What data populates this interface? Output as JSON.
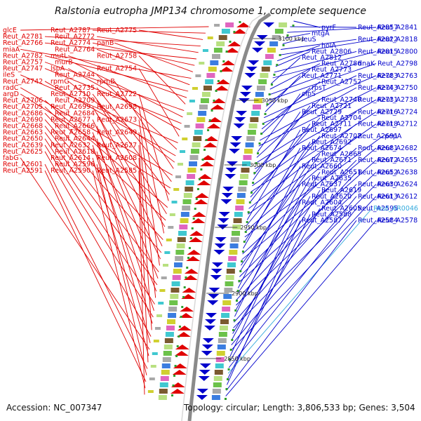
{
  "title": "Ralstonia eutropha JMP134 chromosome 1, complete sequence",
  "accession_text": "Accession: NC_007347",
  "topology_text": "Topology: circular; Length: 3,806,533 bp; Genes: 3,504",
  "colors": {
    "left_genes": "#e00000",
    "right_genes": "#0000cc",
    "rna_gene": "#33aadd",
    "backbone": "#8a8a8a",
    "tick": "#2e9e2e"
  },
  "position_markers": [
    "3100 kbp",
    "3050 kbp",
    "3000 kbp",
    "2950 kbp",
    "2900 kbp",
    "2850 kbp"
  ],
  "left_labels": [
    "glcE",
    "Reut_A2787",
    "Reut_A2775",
    "Reut_A2781",
    "Reut_A2772",
    "Reut_A2766",
    "Reut_A2774",
    "panB",
    "miaA",
    "Reut_A2764",
    "Reut_A2782",
    "mutL",
    "Reut_A2758",
    "Reut_A2757",
    "murB",
    "Reut_A2747",
    "lspA",
    "Reut_A2754",
    "ileS",
    "Reut_A2744",
    "Reut_A2742",
    "rpmG",
    "rpmB",
    "radC",
    "Reut_A2735",
    "argD",
    "Reut_A2710",
    "Reut_A2722",
    "Reut_A2706",
    "Reut_A2709",
    "Reut_A2705",
    "Reut_A2699",
    "Reut_A2698",
    "Reut_A2686",
    "Reut_A2684",
    "Reut_A2690",
    "Reut_A2677",
    "Reut_A2673",
    "Reut_A2668",
    "Reut_A2666",
    "Reut_A2663",
    "Reut_A2658",
    "Reut_A2649",
    "Reut_A2650",
    "Reut_A2644",
    "Reut_A2639",
    "Reut_A2632",
    "Reut_A2627",
    "Reut_A2625",
    "Reut_A2618",
    "fabG",
    "Reut_A2614",
    "Reut_A2608",
    "Reut_A2601",
    "Reut_A2596",
    "Reut_A2591",
    "Reut_A2590",
    "Reut_A2585"
  ],
  "right_labels": [
    "pyrF",
    "Reut_A2857",
    "Reut_A2841",
    "mtgA",
    "leuS",
    "Reut_A2822",
    "Reut_A2818",
    "holA",
    "Reut_A2806",
    "Reut_A2815",
    "Reut_A2800",
    "Reut_A2812",
    "Reut_A2786",
    "dnaK",
    "Reut_A2798",
    "Reut_A2773",
    "Reut_A2771",
    "Reut_A2783",
    "Reut_A2763",
    "Reut_A2752",
    "rpsT",
    "Reut_A2743",
    "Reut_A2750",
    "clpS",
    "Reut_A2740",
    "Reut_A2731",
    "Reut_A2738",
    "Reut_A2721",
    "Reut_A2729",
    "Reut_A2716",
    "Reut_A2724",
    "Reut_A2704",
    "Reut_A2711",
    "Reut_A2718",
    "Reut_A2712",
    "Reut_A2697",
    "Reut_A2702",
    "Reut_A2691",
    "pepA",
    "Reut_A2692",
    "Reut_A2674",
    "Reut_A2681",
    "Reut_A2682",
    "Reut_A2665",
    "Reut_A2671",
    "Reut_A2672",
    "Reut_A2655",
    "Reut_A2660",
    "Reut_A2651",
    "Reut_A2652",
    "Reut_A2638",
    "Reut_A2635",
    "Reut_A2637",
    "Reut_A2630",
    "Reut_A2624",
    "Reut_A2619",
    "Reut_A2620",
    "Reut_A2613",
    "Reut_A2612",
    "Reut_A2604",
    "Reut_A2605",
    "Reut_A2595",
    "Reut_AR0046",
    "Reut_A2588",
    "Reut_A2587",
    "Reut_A2584",
    "Reut_A2578"
  ]
}
